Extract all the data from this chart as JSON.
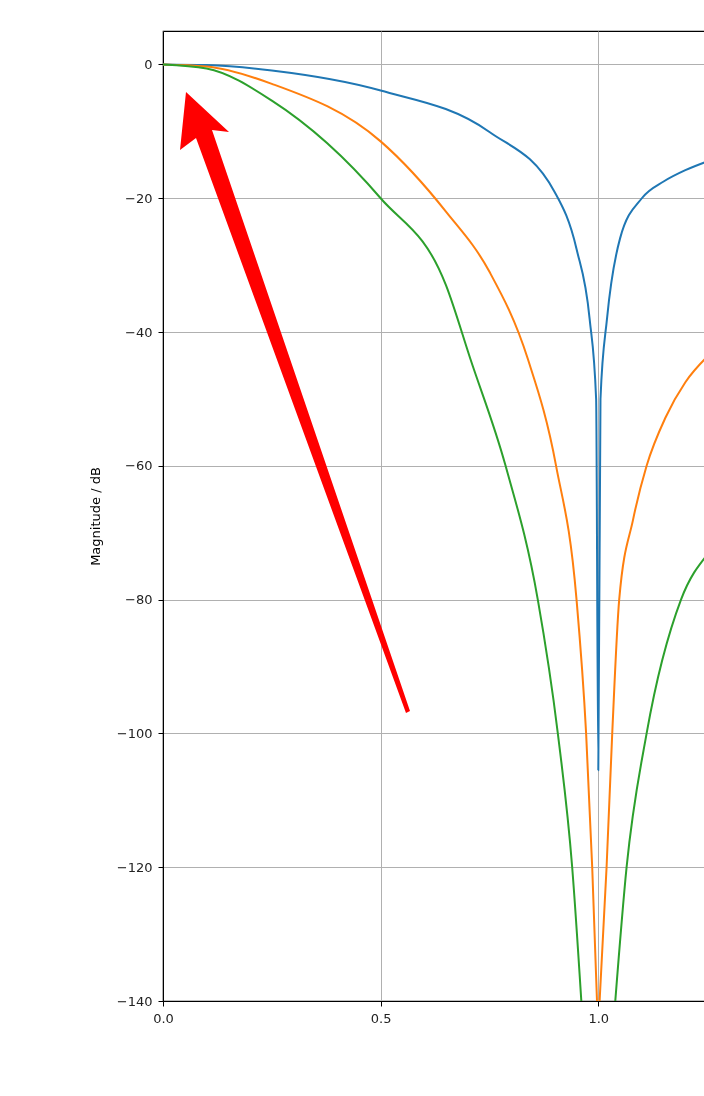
{
  "chart_data": {
    "type": "line",
    "ylabel": "Magnitude / dB",
    "xlim": [
      0,
      1.252
    ],
    "xticks": [
      {
        "value": 0,
        "label": "0.0"
      },
      {
        "value": 0.5,
        "label": "0.5"
      },
      {
        "value": 1,
        "label": "1.0"
      }
    ],
    "ylim": [
      -140,
      5
    ],
    "yticks": [
      -140,
      -120,
      -100,
      -80,
      -60,
      -40,
      -20,
      0
    ],
    "grid": true,
    "line_style": "solid",
    "marker": "none",
    "series": [
      {
        "color": "#1f77b4",
        "x": [
          0,
          0.1,
          0.25,
          0.5,
          0.75,
          0.9,
          0.95,
          0.98,
          0.995,
          1.0,
          1.005,
          1.02,
          1.05,
          1.1,
          1.15,
          1.2,
          1.25
        ],
        "values": [
          0,
          -0.1,
          -0.9,
          -3.9,
          -10.1,
          -19.1,
          -27.6,
          -38,
          -50,
          -105.5,
          -50,
          -38,
          -26,
          -20,
          -17.5,
          -15.8,
          -14.5
        ]
      },
      {
        "color": "#ff7f0e",
        "x": [
          0,
          0.1,
          0.25,
          0.5,
          0.65,
          0.75,
          0.838,
          0.903,
          0.95,
          0.972,
          0.986,
          0.997,
          1.0,
          1.003,
          1.019,
          1.032,
          1.048,
          1.08,
          1.111,
          1.155,
          1.2,
          1.25
        ],
        "values": [
          0,
          -0.3,
          -2.9,
          -11.5,
          -22,
          -31,
          -44,
          -60,
          -80,
          -100,
          -120,
          -140,
          null,
          -140,
          -120,
          -100,
          -80,
          -68,
          -60,
          -52.7,
          -47.5,
          -43.7
        ]
      },
      {
        "color": "#2ca02c",
        "x": [
          0,
          0.1,
          0.25,
          0.5,
          0.65,
          0.706,
          0.787,
          0.861,
          0.907,
          0.94,
          0.961,
          1.0,
          1.039,
          1.065,
          1.111,
          1.19,
          1.25
        ],
        "values": [
          0,
          -0.6,
          -5.4,
          -20,
          -33,
          -44,
          -60,
          -80,
          -100,
          -120,
          -140,
          null,
          -140,
          -120,
          -100,
          -80,
          -73.3
        ]
      }
    ]
  }
}
